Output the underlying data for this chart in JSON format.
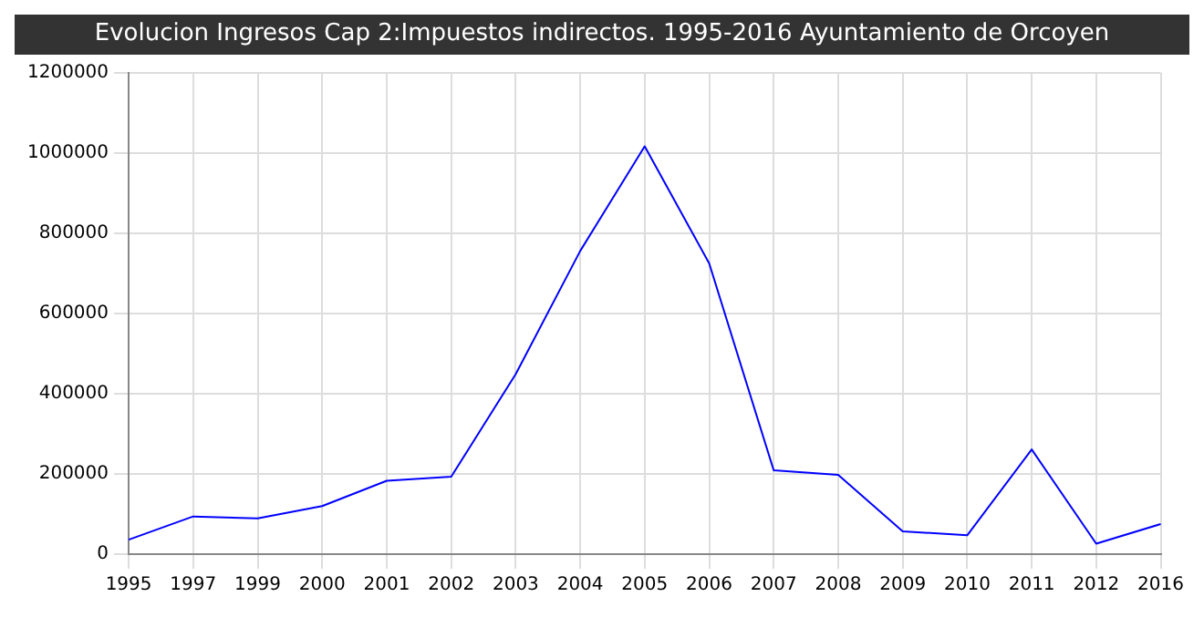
{
  "chart_data": {
    "type": "line",
    "title": "Evolucion Ingresos Cap 2:Impuestos indirectos. 1995-2016 Ayuntamiento de Orcoyen",
    "categories": [
      "1995",
      "1997",
      "1999",
      "2000",
      "2001",
      "2002",
      "2003",
      "2004",
      "2005",
      "2006",
      "2007",
      "2008",
      "2009",
      "2010",
      "2011",
      "2012",
      "2016"
    ],
    "series": [
      {
        "color": "#0000ff",
        "values": [
          36000,
          94000,
          89000,
          120000,
          183000,
          193000,
          449000,
          756000,
          1017000,
          725000,
          209000,
          198000,
          57000,
          47000,
          261000,
          26000,
          75000
        ]
      }
    ],
    "ylim": [
      0,
      1200000
    ],
    "yticks": [
      0,
      200000,
      400000,
      600000,
      800000,
      1000000,
      1200000
    ],
    "grid": true,
    "marker": "none",
    "line_style": "solid"
  }
}
